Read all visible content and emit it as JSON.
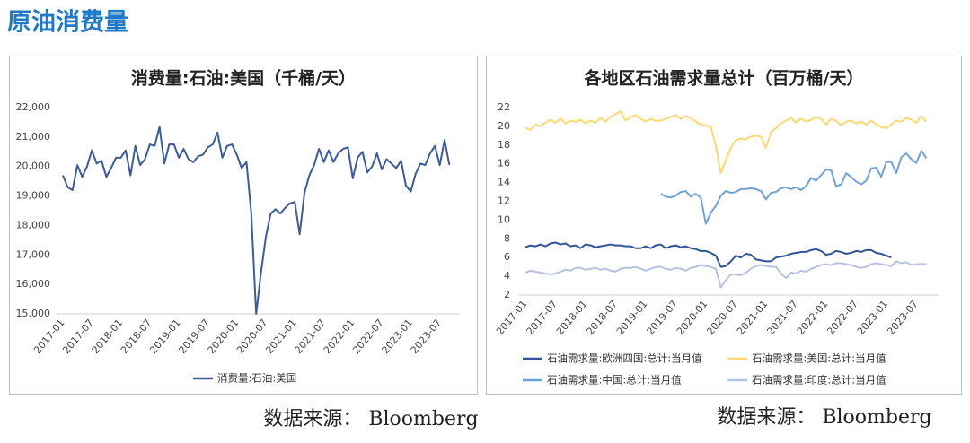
{
  "title": "原油消费量",
  "sources": [
    "数据来源： Bloomberg",
    "数据来源： Bloomberg"
  ],
  "chart_data": [
    {
      "type": "line",
      "title": "消费量:石油:美国（千桶/天）",
      "categories": [
        "2017-01",
        null,
        null,
        null,
        null,
        null,
        "2017-07",
        null,
        null,
        null,
        null,
        null,
        "2018-01",
        null,
        null,
        null,
        null,
        null,
        "2018-07",
        null,
        null,
        null,
        null,
        null,
        "2019-01",
        null,
        null,
        null,
        null,
        null,
        "2019-07",
        null,
        null,
        null,
        null,
        null,
        "2020-01",
        null,
        null,
        null,
        null,
        null,
        "2020-07",
        null,
        null,
        null,
        null,
        null,
        "2021-01",
        null,
        null,
        null,
        null,
        null,
        "2021-07",
        null,
        null,
        null,
        null,
        null,
        "2022-01",
        null,
        null,
        null,
        null,
        null,
        "2022-07",
        null,
        null,
        null,
        null,
        null,
        "2023-01",
        null,
        null,
        null,
        null,
        null,
        "2023-07",
        null,
        null
      ],
      "ylim": [
        15000,
        22000
      ],
      "yticks": [
        {
          "value": 15000,
          "label": "15,000"
        },
        {
          "value": 16000,
          "label": "16,000"
        },
        {
          "value": 17000,
          "label": "17,000"
        },
        {
          "value": 18000,
          "label": "18,000"
        },
        {
          "value": 19000,
          "label": "19,000"
        },
        {
          "value": 20000,
          "label": "20,000"
        },
        {
          "value": 21000,
          "label": "21,000"
        },
        {
          "value": 22000,
          "label": "22,000"
        }
      ],
      "grid": false,
      "series": [
        {
          "name": "消费量:石油:美国",
          "color": "#3b5b9e",
          "values": [
            19700,
            19300,
            19200,
            20050,
            19650,
            20000,
            20550,
            20100,
            20200,
            19650,
            19950,
            20300,
            20300,
            20550,
            19700,
            20700,
            20050,
            20250,
            20750,
            20700,
            21350,
            20100,
            20750,
            20750,
            20300,
            20600,
            20250,
            20150,
            20350,
            20400,
            20650,
            20750,
            21150,
            20300,
            20700,
            20750,
            20400,
            19950,
            20150,
            18400,
            15000,
            16400,
            17600,
            18400,
            18550,
            18400,
            18600,
            18750,
            18800,
            17700,
            19100,
            19700,
            20050,
            20600,
            20150,
            20550,
            20150,
            20450,
            20600,
            20650,
            19600,
            20300,
            20500,
            19800,
            20000,
            20450,
            19900,
            20250,
            20100,
            19950,
            20200,
            19350,
            19150,
            19750,
            20100,
            20050,
            20450,
            20700,
            20050,
            20900,
            20050
          ]
        }
      ]
    },
    {
      "type": "line",
      "title": "各地区石油需求量总计（百万桶/天）",
      "categories": [
        "2017-01",
        null,
        null,
        null,
        null,
        null,
        "2017-07",
        null,
        null,
        null,
        null,
        null,
        "2018-01",
        null,
        null,
        null,
        null,
        null,
        "2018-07",
        null,
        null,
        null,
        null,
        null,
        "2019-01",
        null,
        null,
        null,
        null,
        null,
        "2019-07",
        null,
        null,
        null,
        null,
        null,
        "2020-01",
        null,
        null,
        null,
        null,
        null,
        "2020-07",
        null,
        null,
        null,
        null,
        null,
        "2021-01",
        null,
        null,
        null,
        null,
        null,
        "2021-07",
        null,
        null,
        null,
        null,
        null,
        "2022-01",
        null,
        null,
        null,
        null,
        null,
        "2022-07",
        null,
        null,
        null,
        null,
        null,
        "2023-01",
        null,
        null,
        null,
        null,
        null,
        "2023-07",
        null,
        null
      ],
      "ylim": [
        2,
        22
      ],
      "yticks": [
        2,
        4,
        6,
        8,
        10,
        12,
        14,
        16,
        18,
        20,
        22
      ],
      "grid": false,
      "series": [
        {
          "name": "石油需求量:欧洲四国:总计:当月值",
          "color": "#2f5597",
          "values": [
            7.1,
            7.3,
            7.2,
            7.4,
            7.2,
            7.5,
            7.6,
            7.4,
            7.5,
            7.2,
            7.3,
            7.0,
            7.4,
            7.3,
            7.1,
            7.2,
            7.3,
            7.4,
            7.3,
            7.3,
            7.2,
            7.2,
            7.0,
            7.0,
            7.2,
            7.0,
            7.3,
            7.4,
            7.0,
            7.2,
            7.3,
            7.1,
            7.2,
            7.0,
            6.9,
            6.7,
            6.7,
            6.5,
            6.2,
            5.0,
            5.1,
            5.6,
            6.2,
            6.0,
            6.4,
            6.3,
            5.8,
            5.7,
            5.6,
            5.6,
            6.0,
            6.1,
            6.2,
            6.4,
            6.5,
            6.6,
            6.6,
            6.8,
            6.9,
            6.7,
            6.3,
            6.4,
            6.7,
            6.6,
            6.4,
            6.5,
            6.7,
            6.6,
            6.8,
            6.8,
            6.5,
            6.4,
            6.2,
            6.0,
            null,
            null,
            null,
            null,
            null,
            null,
            null
          ]
        },
        {
          "name": "石油需求量:美国:总计:当月值",
          "color": "#fbd970",
          "values": [
            19.9,
            19.6,
            20.2,
            20.0,
            20.4,
            20.7,
            20.4,
            20.8,
            20.3,
            20.6,
            20.5,
            20.7,
            20.3,
            20.6,
            20.4,
            20.9,
            20.5,
            21.0,
            21.3,
            21.6,
            20.6,
            21.0,
            21.2,
            20.8,
            20.5,
            20.8,
            20.6,
            20.6,
            20.8,
            21.0,
            21.2,
            20.8,
            21.1,
            20.9,
            20.5,
            20.2,
            20.1,
            19.9,
            17.9,
            15.0,
            16.4,
            17.7,
            18.5,
            18.7,
            18.6,
            18.9,
            19.0,
            18.9,
            17.7,
            19.4,
            19.8,
            20.3,
            20.6,
            20.9,
            20.4,
            20.8,
            20.5,
            20.7,
            21.0,
            20.8,
            20.2,
            20.8,
            20.6,
            20.1,
            20.5,
            20.6,
            20.3,
            20.5,
            20.2,
            20.6,
            20.2,
            19.9,
            19.8,
            20.2,
            20.6,
            20.5,
            20.9,
            20.7,
            20.4,
            21.1,
            20.5
          ]
        },
        {
          "name": "石油需求量:中国:总计:当月值",
          "color": "#6fa3d8",
          "values": [
            null,
            null,
            null,
            null,
            null,
            null,
            null,
            null,
            null,
            null,
            null,
            null,
            null,
            null,
            null,
            null,
            null,
            null,
            null,
            null,
            null,
            null,
            null,
            null,
            null,
            null,
            null,
            12.8,
            12.5,
            12.4,
            12.6,
            13.0,
            13.1,
            12.5,
            12.8,
            12.4,
            9.6,
            10.8,
            11.5,
            12.6,
            13.1,
            12.9,
            13.0,
            13.3,
            13.3,
            13.4,
            13.3,
            13.1,
            12.2,
            12.9,
            13.0,
            13.4,
            13.5,
            13.3,
            13.5,
            13.2,
            13.6,
            14.5,
            14.2,
            14.8,
            15.4,
            15.3,
            13.6,
            13.8,
            15.0,
            14.6,
            14.1,
            13.8,
            14.2,
            15.5,
            15.6,
            14.6,
            16.2,
            16.2,
            15.0,
            16.7,
            17.1,
            16.5,
            16.1,
            17.4,
            16.6
          ]
        },
        {
          "name": "石油需求量:印度:总计:当月值",
          "color": "#b7c1e4",
          "values": [
            4.4,
            4.6,
            4.5,
            4.4,
            4.3,
            4.2,
            4.3,
            4.5,
            4.7,
            4.6,
            4.9,
            4.9,
            4.7,
            4.8,
            4.9,
            4.7,
            4.8,
            4.6,
            4.5,
            4.8,
            4.9,
            4.9,
            5.0,
            4.8,
            4.6,
            4.8,
            5.0,
            5.0,
            4.8,
            4.7,
            4.9,
            4.8,
            4.6,
            4.9,
            5.0,
            5.2,
            5.1,
            5.0,
            4.8,
            2.8,
            3.6,
            4.2,
            4.2,
            4.1,
            4.4,
            4.8,
            5.1,
            5.2,
            5.1,
            5.0,
            5.0,
            4.3,
            3.8,
            4.4,
            4.3,
            4.6,
            4.5,
            4.8,
            5.0,
            5.2,
            5.3,
            5.2,
            5.4,
            5.4,
            5.3,
            5.2,
            5.0,
            4.9,
            5.0,
            5.3,
            5.4,
            5.3,
            5.2,
            5.1,
            5.6,
            5.4,
            5.5,
            5.2,
            5.3,
            5.3,
            5.3
          ]
        }
      ]
    }
  ]
}
